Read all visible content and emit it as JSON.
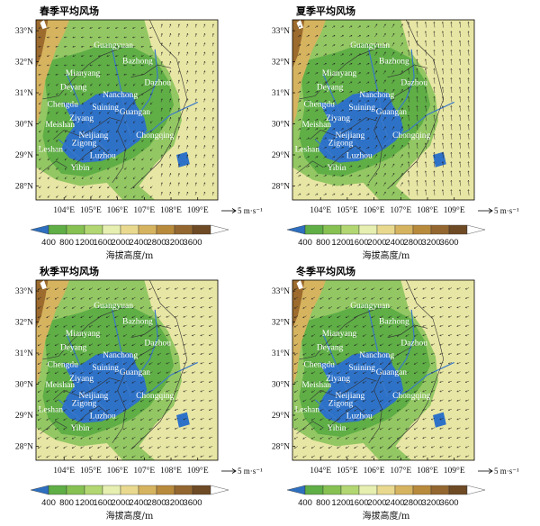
{
  "panels": [
    {
      "title": "春季平均风场",
      "wind_style": "mixed"
    },
    {
      "title": "夏季平均风场",
      "wind_style": "southerly"
    },
    {
      "title": "秋季平均风场",
      "wind_style": "northeasterly"
    },
    {
      "title": "冬季平均风场",
      "wind_style": "northeasterly"
    }
  ],
  "cities": [
    {
      "name": "Guangyuan",
      "lon": 105.85,
      "lat": 32.45
    },
    {
      "name": "Bazhong",
      "lon": 106.75,
      "lat": 31.95
    },
    {
      "name": "Mianyang",
      "lon": 104.7,
      "lat": 31.55
    },
    {
      "name": "Dazhou",
      "lon": 107.5,
      "lat": 31.25
    },
    {
      "name": "Deyang",
      "lon": 104.35,
      "lat": 31.1
    },
    {
      "name": "Nanchong",
      "lon": 106.1,
      "lat": 30.85
    },
    {
      "name": "Chengdu",
      "lon": 103.95,
      "lat": 30.55
    },
    {
      "name": "Suining",
      "lon": 105.55,
      "lat": 30.45
    },
    {
      "name": "Guangan",
      "lon": 106.65,
      "lat": 30.3
    },
    {
      "name": "Ziyang",
      "lon": 104.65,
      "lat": 30.1
    },
    {
      "name": "Meishan",
      "lon": 103.85,
      "lat": 29.9
    },
    {
      "name": "Chongqing",
      "lon": 107.4,
      "lat": 29.55
    },
    {
      "name": "Neijiang",
      "lon": 105.1,
      "lat": 29.55
    },
    {
      "name": "Zigong",
      "lon": 104.75,
      "lat": 29.3
    },
    {
      "name": "Leshan",
      "lon": 103.5,
      "lat": 29.1
    },
    {
      "name": "Luzhou",
      "lon": 105.45,
      "lat": 28.9
    },
    {
      "name": "Yibin",
      "lon": 104.6,
      "lat": 28.5
    }
  ],
  "axes": {
    "x_ticks": [
      "104°E",
      "105°E",
      "106°E",
      "107°E",
      "108°E",
      "109°E"
    ],
    "x_values": [
      104,
      105,
      106,
      107,
      108,
      109
    ],
    "y_ticks": [
      "33°N",
      "32°N",
      "31°N",
      "30°N",
      "29°N",
      "28°N"
    ],
    "y_values": [
      33,
      32,
      31,
      30,
      29,
      28
    ],
    "lon_range": [
      102.95,
      109.75
    ],
    "lat_range": [
      27.55,
      33.35
    ]
  },
  "scale_arrow_label": "5 m·s⁻¹",
  "colorbar": {
    "title": "海拔高度/m",
    "labels": [
      "400",
      "800",
      "1200",
      "1600",
      "2000",
      "2400",
      "2800",
      "3200",
      "3600"
    ],
    "colors": [
      "#2e6fbf",
      "#5fae46",
      "#86c152",
      "#b2d772",
      "#e6efb0",
      "#e9d98f",
      "#d6b35f",
      "#b88a3c",
      "#93672f",
      "#6e4a25",
      "#ffffff"
    ]
  },
  "legend_colors": {
    "basin_blue": "#2e72c8",
    "lowland_green": "#5fae46",
    "hill_green": "#93c763",
    "upland_yellow": "#e8e6a4",
    "mountain_brown": "#9c6b2d"
  }
}
